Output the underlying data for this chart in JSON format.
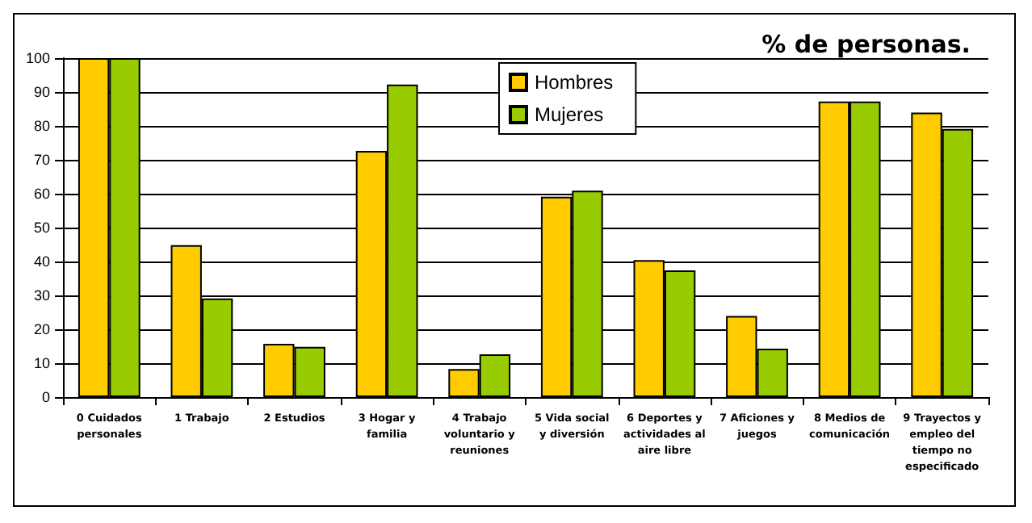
{
  "chart_data": {
    "type": "bar",
    "title": "% de personas.",
    "categories": [
      "0 Cuidados personales",
      "1 Trabajo",
      "2 Estudios",
      "3 Hogar y familia",
      "4 Trabajo voluntario y reuniones",
      "5 Vida social y diversión",
      "6 Deportes y actividades al aire libre",
      "7 Aficiones y juegos",
      "8 Medios de comunicación",
      "9 Trayectos y empleo del tiempo no especificado"
    ],
    "series": [
      {
        "name": "Hombres",
        "color": "#ffcc00",
        "values": [
          100,
          44.8,
          15.7,
          72.6,
          8.3,
          59.1,
          40.4,
          23.9,
          87.2,
          83.9
        ]
      },
      {
        "name": "Mujeres",
        "color": "#99cc00",
        "values": [
          100,
          29.1,
          14.8,
          92.2,
          12.6,
          60.9,
          37.4,
          14.3,
          87.2,
          79.1
        ]
      }
    ],
    "ylim": [
      0,
      100
    ],
    "yticks": [
      0,
      10,
      20,
      30,
      40,
      50,
      60,
      70,
      80,
      90,
      100
    ],
    "grid": "y",
    "legend": "top"
  }
}
